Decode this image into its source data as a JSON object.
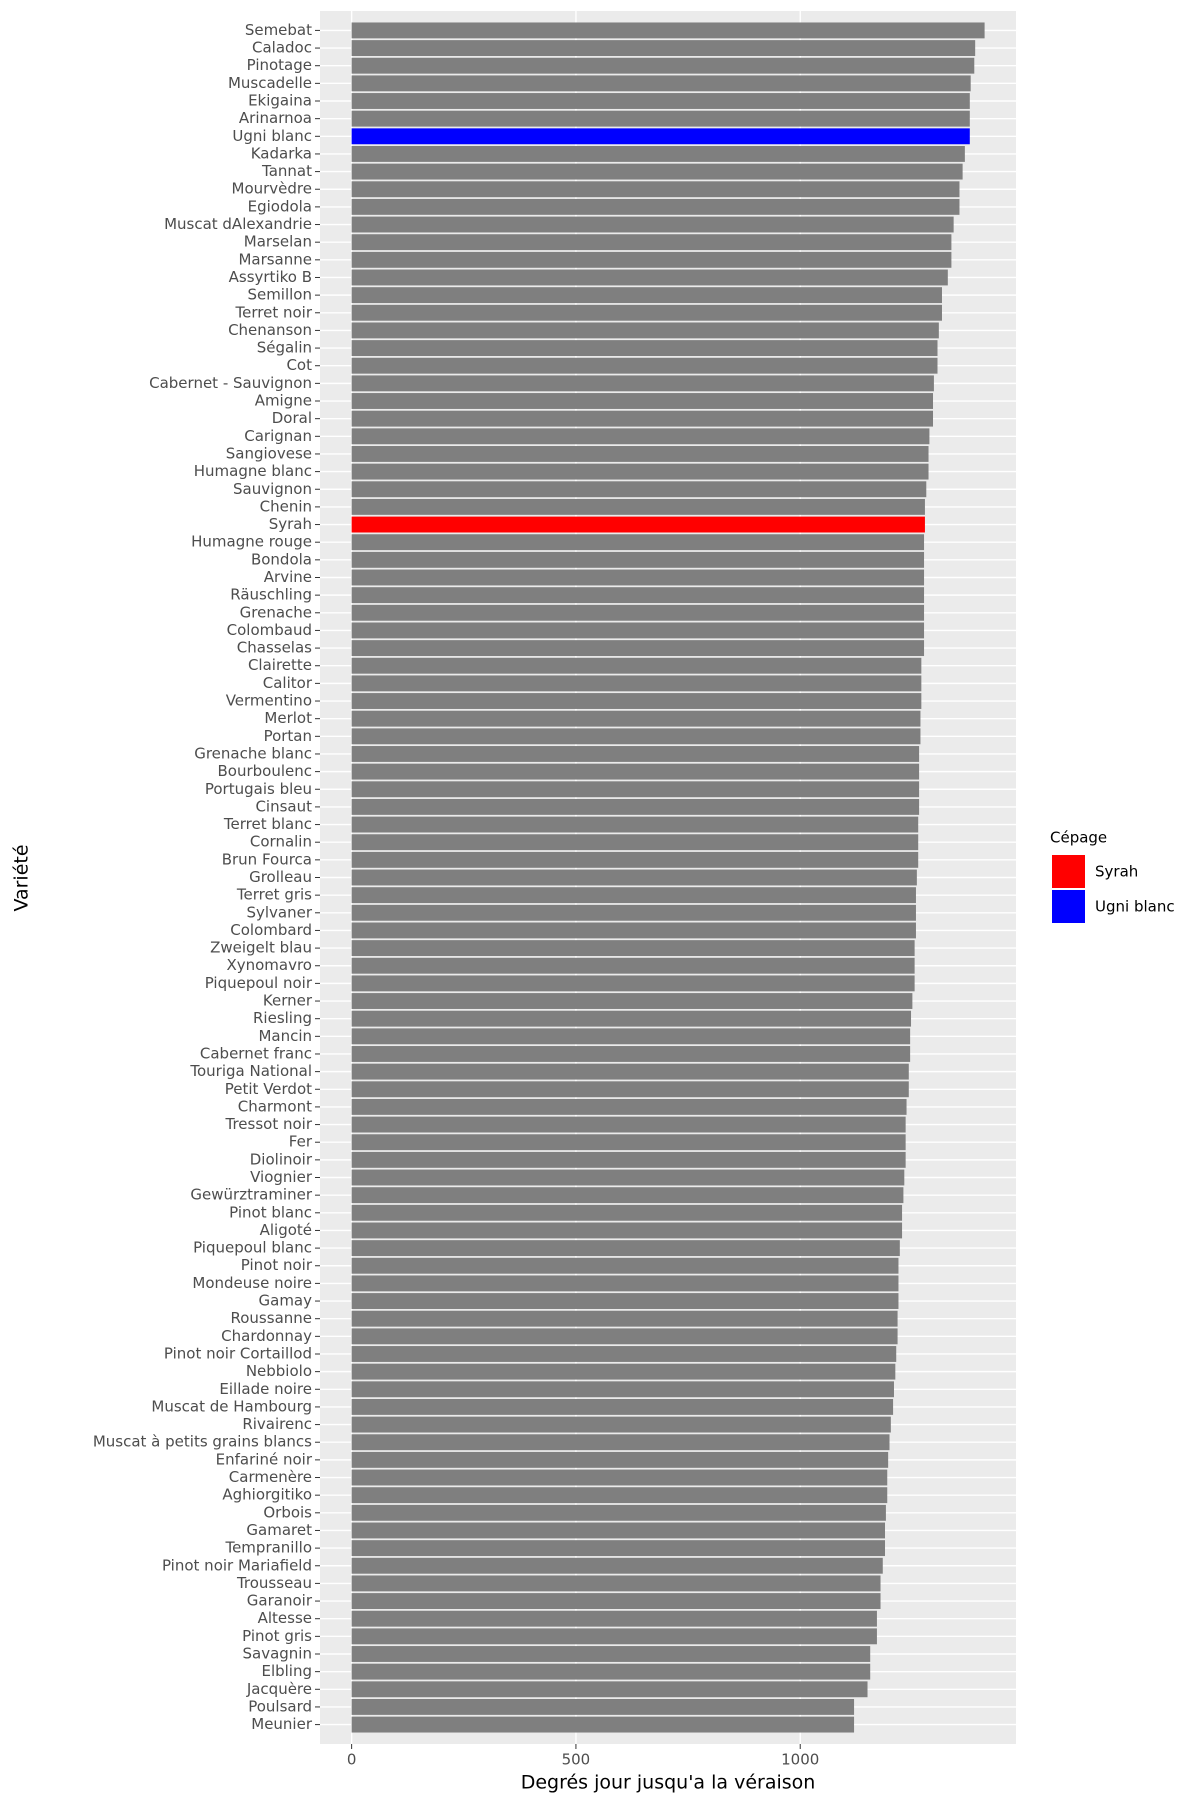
{
  "chart_data": {
    "type": "barh",
    "x_label": "Degrés jour jusqu'a la véraison",
    "y_label": "Variété",
    "categories": [
      "Semebat",
      "Caladoc",
      "Pinotage",
      "Muscadelle",
      "Ekigaina",
      "Arinarnoa",
      "Ugni blanc",
      "Kadarka",
      "Tannat",
      "Mourvèdre",
      "Egiodola",
      "Muscat dAlexandrie",
      "Marselan",
      "Marsanne",
      "Assyrtiko B",
      "Semillon",
      "Terret noir",
      "Chenanson",
      "Ségalin",
      "Cot",
      "Cabernet - Sauvignon",
      "Amigne",
      "Doral",
      "Carignan",
      "Sangiovese",
      "Humagne blanc",
      "Sauvignon",
      "Chenin",
      "Syrah",
      "Humagne rouge",
      "Bondola",
      "Arvine",
      "Räuschling",
      "Grenache",
      "Colombaud",
      "Chasselas",
      "Clairette",
      "Calitor",
      "Vermentino",
      "Merlot",
      "Portan",
      "Grenache blanc",
      "Bourboulenc",
      "Portugais bleu",
      "Cinsaut",
      "Terret blanc",
      "Cornalin",
      "Brun Fourca",
      "Grolleau",
      "Terret gris",
      "Sylvaner",
      "Colombard",
      "Zweigelt blau",
      "Xynomavro",
      "Piquepoul noir",
      "Kerner",
      "Riesling",
      "Mancin",
      "Cabernet franc",
      "Touriga National",
      "Petit Verdot",
      "Charmont",
      "Tressot noir",
      "Fer",
      "Diolinoir",
      "Viognier",
      "Gewürztraminer",
      "Pinot blanc",
      "Aligoté",
      "Piquepoul blanc",
      "Pinot noir",
      "Mondeuse noire",
      "Gamay",
      "Roussanne",
      "Chardonnay",
      "Pinot noir Cortaillod",
      "Nebbiolo",
      "Eillade noire",
      "Muscat de Hambourg",
      "Rivairenc",
      "Muscat à petits grains blancs",
      "Enfariné noir",
      "Carmenère",
      "Aghiorgitiko",
      "Orbois",
      "Gamaret",
      "Tempranillo",
      "Pinot noir Mariafield",
      "Trousseau",
      "Garanoir",
      "Altesse",
      "Pinot gris",
      "Savagnin",
      "Elbling",
      "Jacquère",
      "Poulsard",
      "Meunier"
    ],
    "values": [
      1411,
      1390,
      1388,
      1380,
      1378,
      1378,
      1378,
      1367,
      1362,
      1355,
      1355,
      1342,
      1337,
      1337,
      1329,
      1316,
      1316,
      1309,
      1306,
      1306,
      1298,
      1296,
      1296,
      1288,
      1286,
      1286,
      1281,
      1278,
      1278,
      1276,
      1276,
      1276,
      1276,
      1276,
      1276,
      1276,
      1270,
      1270,
      1270,
      1268,
      1268,
      1265,
      1265,
      1265,
      1265,
      1263,
      1263,
      1263,
      1260,
      1258,
      1258,
      1258,
      1255,
      1255,
      1255,
      1250,
      1247,
      1245,
      1245,
      1242,
      1242,
      1237,
      1235,
      1235,
      1235,
      1232,
      1230,
      1227,
      1227,
      1222,
      1219,
      1219,
      1219,
      1217,
      1217,
      1214,
      1212,
      1209,
      1207,
      1202,
      1199,
      1196,
      1194,
      1194,
      1191,
      1189,
      1189,
      1184,
      1179,
      1179,
      1171,
      1171,
      1156,
      1156,
      1150,
      1120,
      1120
    ],
    "color": "#7f7f7f",
    "legend": {
      "title": "Cépage",
      "items": [
        {
          "name": "Syrah",
          "color": "#ff0000"
        },
        {
          "name": "Ugni blanc",
          "color": "#0000ff"
        }
      ]
    },
    "xlim": [
      -70.5,
      1481
    ],
    "xticks": [
      0,
      500,
      1000
    ],
    "grid": true
  }
}
